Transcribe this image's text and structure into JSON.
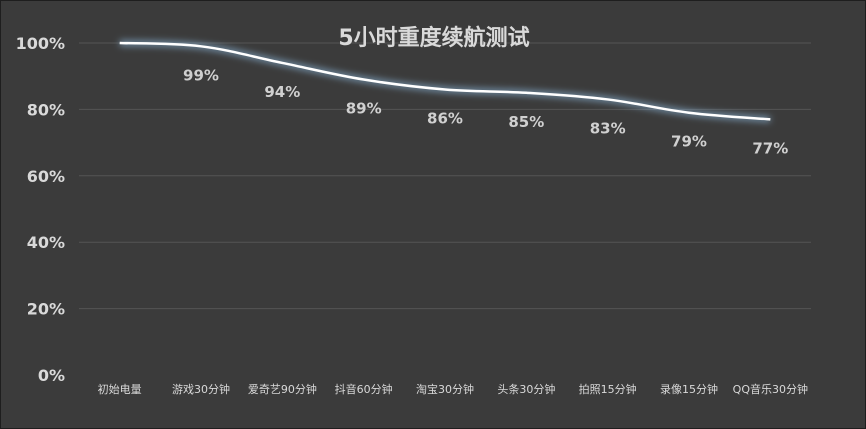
{
  "chart_data": {
    "type": "line",
    "title": "5小时重度续航测试",
    "categories": [
      "初始电量",
      "游戏30分钟",
      "爱奇艺90分钟",
      "抖音60分钟",
      "淘宝30分钟",
      "头条30分钟",
      "拍照15分钟",
      "录像15分钟",
      "QQ音乐30分钟"
    ],
    "series": [
      {
        "values": [
          100,
          99,
          94,
          89,
          86,
          85,
          83,
          79,
          77
        ],
        "labels": [
          "",
          "99%",
          "94%",
          "89%",
          "86%",
          "85%",
          "83%",
          "79%",
          "77%"
        ]
      }
    ],
    "y_ticks": [
      "0%",
      "20%",
      "40%",
      "60%",
      "80%",
      "100%"
    ],
    "ylim": [
      0,
      100
    ],
    "grid": true,
    "legend": "none",
    "colors": {
      "background": "#3b3b3b",
      "line": "#ffffff",
      "glow": "#9fd3ff",
      "text": "#d9d9d9",
      "grid": "#555555"
    }
  }
}
